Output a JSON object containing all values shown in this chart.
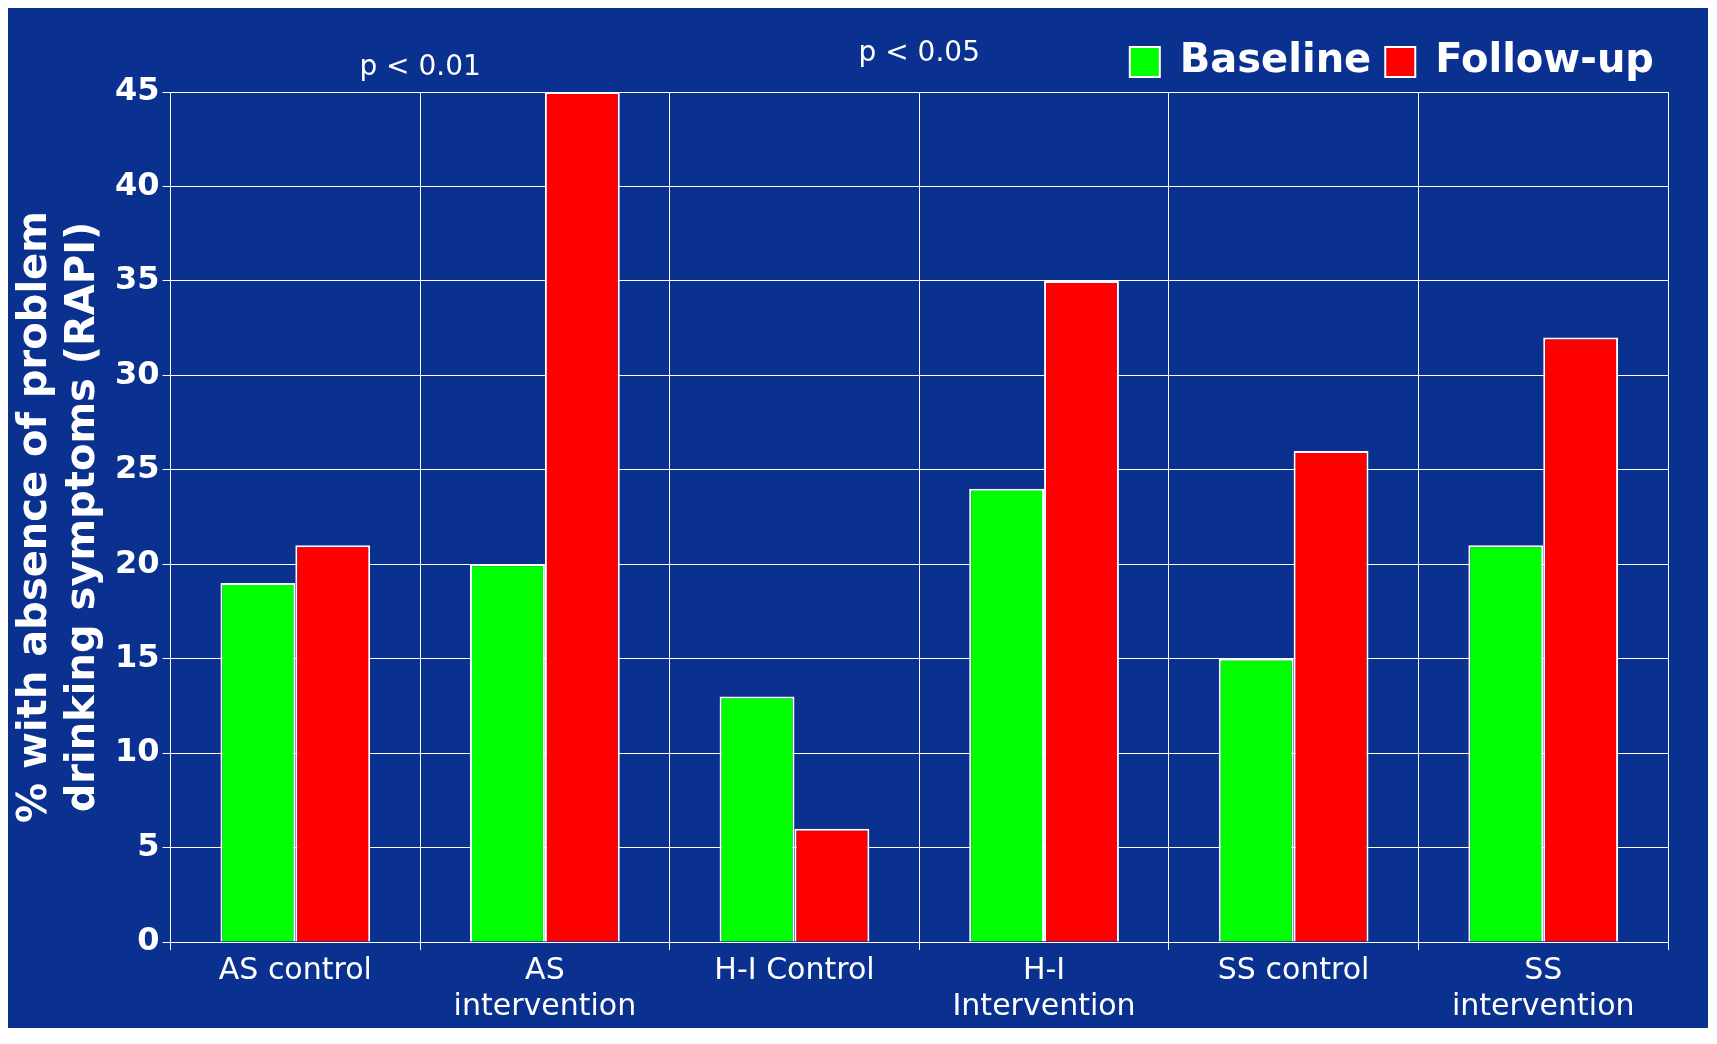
{
  "chart_data": {
    "type": "bar",
    "ylabel": "% with absence of problem drinking symptoms (RAPI)",
    "categories": [
      "AS control",
      "AS intervention",
      "H-I Control",
      "H-I Intervention",
      "SS control",
      "SS intervention"
    ],
    "series": [
      {
        "name": "Baseline",
        "color": "#00ff00",
        "values": [
          19,
          20,
          13,
          24,
          15,
          21
        ]
      },
      {
        "name": "Follow-up",
        "color": "#ff0000",
        "values": [
          21,
          45,
          6,
          35,
          26,
          32
        ]
      }
    ],
    "ylim": [
      0,
      45
    ],
    "yticks": [
      0,
      5,
      10,
      15,
      20,
      25,
      30,
      35,
      40,
      45
    ],
    "grid": true,
    "legend": "top right",
    "annotations": [
      "p < 0.01",
      "p < 0.05"
    ]
  }
}
